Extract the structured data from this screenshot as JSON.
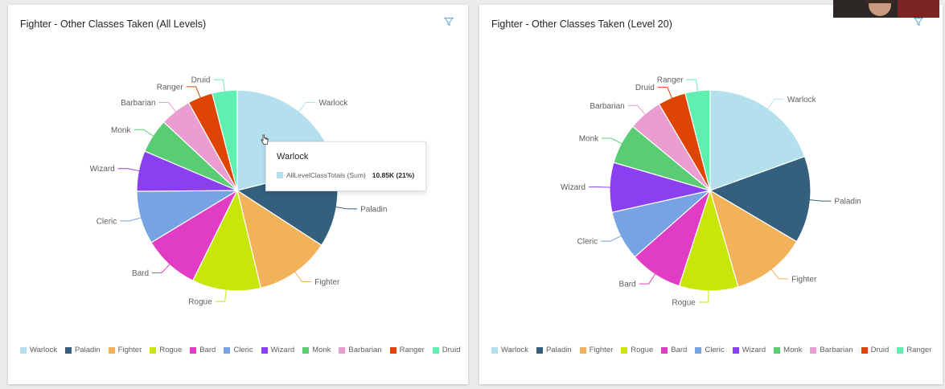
{
  "chart_data": [
    {
      "type": "pie",
      "title": "Fighter - Other Classes Taken (All Levels)",
      "categories": [
        "Warlock",
        "Paladin",
        "Fighter",
        "Rogue",
        "Bard",
        "Cleric",
        "Wizard",
        "Monk",
        "Barbarian",
        "Ranger",
        "Druid"
      ],
      "values": [
        21,
        13,
        12,
        11,
        9,
        8.5,
        6.5,
        5.5,
        5,
        4,
        4
      ],
      "colors": [
        "#b4e0ee",
        "#34607d",
        "#f2b25a",
        "#c9e60a",
        "#e03dc4",
        "#76a3e3",
        "#8a3ff0",
        "#5acd74",
        "#e99dd1",
        "#de4403",
        "#5ef0b0"
      ],
      "legend": "bottom",
      "tooltip": {
        "title": "Warlock",
        "label": "AllLevelClassTotals (Sum)",
        "value": "10.85K (21%)"
      }
    },
    {
      "type": "pie",
      "title": "Fighter - Other Classes Taken (Level 20)",
      "categories": [
        "Warlock",
        "Paladin",
        "Fighter",
        "Rogue",
        "Bard",
        "Cleric",
        "Wizard",
        "Monk",
        "Barbarian",
        "Druid",
        "Ranger"
      ],
      "values": [
        19.5,
        14,
        12,
        9.5,
        8.5,
        8,
        8,
        6.5,
        5.5,
        4.5,
        4
      ],
      "colors": [
        "#b4e0ee",
        "#34607d",
        "#f2b25a",
        "#c9e60a",
        "#e03dc4",
        "#76a3e3",
        "#8a3ff0",
        "#5acd74",
        "#e99dd1",
        "#de4403",
        "#5ef0b0"
      ],
      "legend": "bottom"
    }
  ],
  "icons": {
    "filter": "filter-icon",
    "cursor": "hand-cursor-icon"
  }
}
